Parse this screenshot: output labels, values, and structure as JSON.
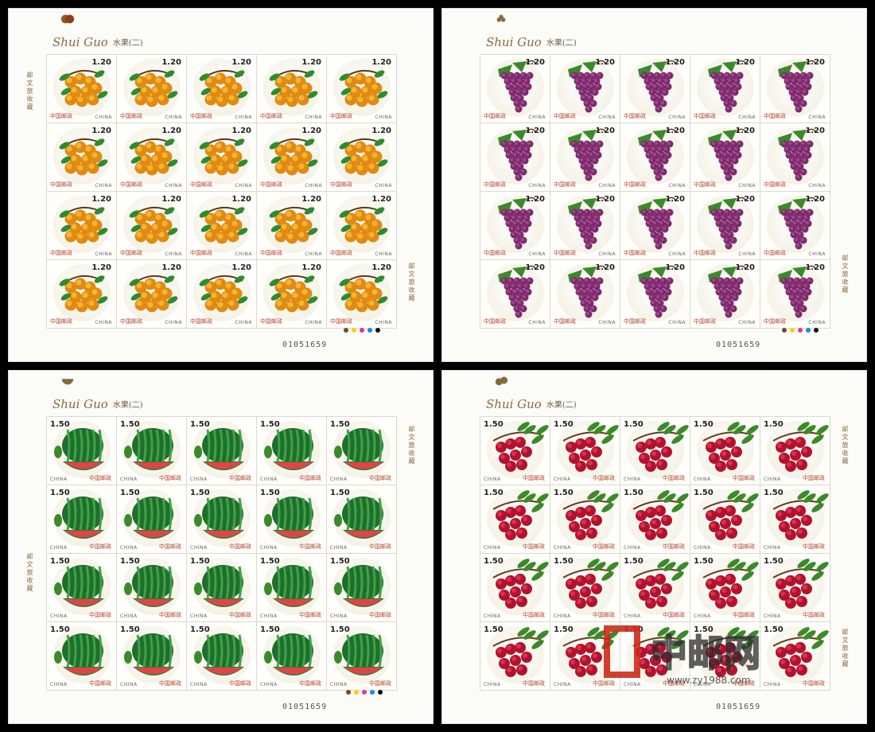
{
  "sheets": [
    {
      "logo": "Shui Guo",
      "subtitle": "水果(二)",
      "denomination": "1.20",
      "post": "中国邮政",
      "country": "CHINA",
      "fruit": "apricot",
      "side_text": "邮文旅收藏",
      "serial": "01051659",
      "colors": [
        "#e08a12",
        "#f6b531",
        "#2e8b2e"
      ]
    },
    {
      "logo": "Shui Guo",
      "subtitle": "水果(二)",
      "denomination": "1.20",
      "post": "中国邮政",
      "country": "CHINA",
      "fruit": "grape",
      "side_text": "邮文旅收藏",
      "serial": "01051659",
      "colors": [
        "#7d2a6c",
        "#a1478c",
        "#3a8a2a"
      ]
    },
    {
      "logo": "Shui Guo",
      "subtitle": "水果(二)",
      "denomination": "1.50",
      "post": "中国邮政",
      "country": "CHINA",
      "fruit": "watermelon",
      "side_text": "邮文旅收藏",
      "serial": "01051659",
      "colors": [
        "#1f6e2b",
        "#3fa24a",
        "#e04545"
      ]
    },
    {
      "logo": "Shui Guo",
      "subtitle": "水果(二)",
      "denomination": "1.50",
      "post": "中国邮政",
      "country": "CHINA",
      "fruit": "lychee",
      "side_text": "邮文旅收藏",
      "serial": "01051659",
      "colors": [
        "#b3122e",
        "#d9324a",
        "#3a8a2a"
      ]
    }
  ],
  "watermark": {
    "text": "中邮网",
    "url": "www.zy1988.com"
  }
}
